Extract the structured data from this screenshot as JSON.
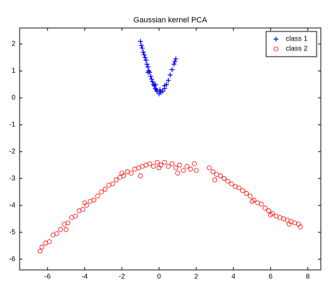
{
  "chart_data": {
    "type": "scatter",
    "title": "Gaussian kernel PCA",
    "xlim": [
      -7.5,
      8.7
    ],
    "ylim": [
      -6.4,
      2.6
    ],
    "xticks": [
      -6,
      -4,
      -2,
      0,
      2,
      4,
      6,
      8
    ],
    "yticks": [
      -6,
      -5,
      -4,
      -3,
      -2,
      -1,
      0,
      1,
      2
    ],
    "legend": "northeast",
    "series": [
      {
        "name": "class 1",
        "color": "#0000ff",
        "marker": "plus",
        "x": [
          -1.0,
          -0.95,
          -0.9,
          -0.85,
          -0.8,
          -0.75,
          -0.7,
          -0.65,
          -0.6,
          -0.55,
          -0.5,
          -0.45,
          -0.4,
          -0.35,
          -0.3,
          -0.25,
          -0.2,
          -0.15,
          -0.1,
          0,
          0.1,
          0.2,
          0.3,
          0.4,
          0.5,
          0.6,
          0.7,
          0.8,
          0.9,
          0.85,
          -0.6,
          0.05,
          -0.2,
          0.3
        ],
        "values": [
          2.1,
          1.95,
          1.85,
          1.7,
          1.6,
          1.5,
          1.4,
          1.25,
          1.15,
          1.0,
          0.95,
          0.8,
          0.7,
          0.6,
          0.5,
          0.45,
          0.35,
          0.3,
          0.25,
          0.15,
          0.2,
          0.25,
          0.35,
          0.5,
          0.65,
          0.85,
          1.05,
          1.25,
          1.45,
          1.35,
          0.95,
          0.3,
          0.5,
          0.45
        ]
      },
      {
        "name": "class 2",
        "color": "#ff0000",
        "marker": "circle",
        "x": [
          -6.4,
          -6.3,
          -6.1,
          -5.9,
          -5.7,
          -5.5,
          -5.3,
          -5.1,
          -4.9,
          -4.7,
          -4.5,
          -4.3,
          -4.1,
          -3.9,
          -3.7,
          -3.5,
          -3.3,
          -3.1,
          -2.9,
          -2.7,
          -2.5,
          -2.3,
          -2.1,
          -1.9,
          -1.7,
          -1.5,
          -1.3,
          -1.1,
          -0.9,
          -0.7,
          -0.5,
          -0.3,
          -0.1,
          0.1,
          0.3,
          0.5,
          0.7,
          0.9,
          1.1,
          1.3,
          1.5,
          1.7,
          1.9,
          2.0,
          2.7,
          2.9,
          3.1,
          3.3,
          3.5,
          3.7,
          3.9,
          4.1,
          4.3,
          4.5,
          4.7,
          4.9,
          5.1,
          5.3,
          5.5,
          5.7,
          5.9,
          6.1,
          6.3,
          6.5,
          6.7,
          6.9,
          7.1,
          7.3,
          7.5,
          7.6,
          -4.0,
          -2.0,
          0.0,
          -1.0,
          1.0,
          5.0,
          3.0,
          -5.0,
          6.0,
          7.0
        ],
        "values": [
          -5.7,
          -5.55,
          -5.4,
          -5.35,
          -5.1,
          -5.05,
          -4.9,
          -4.7,
          -4.65,
          -4.45,
          -4.4,
          -4.2,
          -4.15,
          -4.0,
          -3.85,
          -3.8,
          -3.65,
          -3.5,
          -3.4,
          -3.25,
          -3.2,
          -3.05,
          -2.95,
          -2.9,
          -2.75,
          -2.8,
          -2.65,
          -2.6,
          -2.55,
          -2.5,
          -2.45,
          -2.55,
          -2.4,
          -2.5,
          -2.4,
          -2.55,
          -2.45,
          -2.6,
          -2.5,
          -2.7,
          -2.55,
          -2.65,
          -2.45,
          -2.7,
          -2.6,
          -2.75,
          -2.85,
          -2.9,
          -3.0,
          -3.1,
          -3.2,
          -3.3,
          -3.35,
          -3.45,
          -3.55,
          -3.65,
          -3.8,
          -3.9,
          -3.95,
          -4.1,
          -4.2,
          -4.3,
          -4.4,
          -4.45,
          -4.5,
          -4.55,
          -4.6,
          -4.65,
          -4.7,
          -4.8,
          -3.9,
          -2.8,
          -2.6,
          -2.9,
          -2.8,
          -3.85,
          -3.05,
          -4.9,
          -4.35,
          -4.7
        ]
      }
    ]
  }
}
